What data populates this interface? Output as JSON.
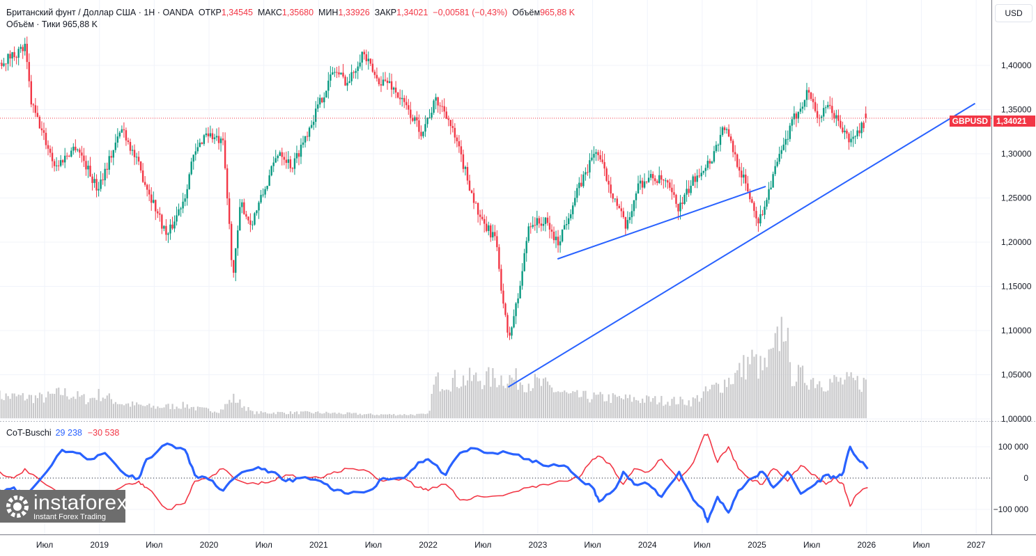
{
  "header": {
    "title": "Британский фунт / Доллар США · 1Н · OANDA",
    "open_label": "ОТКР",
    "open": "1,34545",
    "high_label": "МАКС",
    "high": "1,35680",
    "low_label": "МИН",
    "low": "1,33926",
    "close_label": "ЗАКР",
    "close": "1,34021",
    "change": "−0,00581 (−0,43%)",
    "volume_label": "Объём",
    "volume": "965,88 K",
    "sub": "Объём · Тики  965,88 K"
  },
  "currency": "USD",
  "price_tag": {
    "symbol": "GBPUSD",
    "value": "1,34021"
  },
  "cot_legend": {
    "name": "CoT-Buschi",
    "blue": "29 238",
    "red": "−30 538"
  },
  "logo": {
    "name": "instaforex",
    "tagline": "Instant Forex Trading"
  },
  "colors": {
    "up": "#089981",
    "down": "#f23645",
    "volume": "#c9c9cb",
    "cot_blue": "#2962ff",
    "cot_red": "#f23645",
    "trendline": "#2962ff"
  },
  "chart_data": [
    {
      "type": "candlestick",
      "symbol": "GBPUSD",
      "ylim": [
        1.0,
        1.43
      ],
      "grid": true,
      "yticks": [
        {
          "v": 1.4,
          "label": "1,40000"
        },
        {
          "v": 1.35,
          "label": "1,35000"
        },
        {
          "v": 1.3,
          "label": "1,30000"
        },
        {
          "v": 1.25,
          "label": "1,25000"
        },
        {
          "v": 1.2,
          "label": "1,20000"
        },
        {
          "v": 1.15,
          "label": "1,15000"
        },
        {
          "v": 1.1,
          "label": "1,10000"
        },
        {
          "v": 1.05,
          "label": "1,05000"
        },
        {
          "v": 1.0,
          "label": "1,00000"
        }
      ],
      "last_price": 1.34021,
      "last_open": 1.34545,
      "close_path": [
        [
          2018.09,
          1.403
        ],
        [
          2018.32,
          1.42
        ],
        [
          2018.38,
          1.356
        ],
        [
          2018.6,
          1.285
        ],
        [
          2018.79,
          1.31
        ],
        [
          2018.98,
          1.26
        ],
        [
          2019.21,
          1.33
        ],
        [
          2019.36,
          1.285
        ],
        [
          2019.62,
          1.206
        ],
        [
          2019.78,
          1.253
        ],
        [
          2019.84,
          1.29
        ],
        [
          2019.97,
          1.325
        ],
        [
          2020.13,
          1.31
        ],
        [
          2020.22,
          1.16
        ],
        [
          2020.29,
          1.245
        ],
        [
          2020.38,
          1.22
        ],
        [
          2020.51,
          1.26
        ],
        [
          2020.64,
          1.305
        ],
        [
          2020.76,
          1.285
        ],
        [
          2020.92,
          1.332
        ],
        [
          2021.14,
          1.395
        ],
        [
          2021.27,
          1.38
        ],
        [
          2021.4,
          1.415
        ],
        [
          2021.53,
          1.384
        ],
        [
          2021.65,
          1.38
        ],
        [
          2021.78,
          1.356
        ],
        [
          2021.94,
          1.325
        ],
        [
          2022.07,
          1.36
        ],
        [
          2022.16,
          1.348
        ],
        [
          2022.29,
          1.3
        ],
        [
          2022.48,
          1.222
        ],
        [
          2022.61,
          1.206
        ],
        [
          2022.73,
          1.088
        ],
        [
          2022.83,
          1.143
        ],
        [
          2022.92,
          1.222
        ],
        [
          2023.08,
          1.222
        ],
        [
          2023.18,
          1.198
        ],
        [
          2023.37,
          1.26
        ],
        [
          2023.53,
          1.305
        ],
        [
          2023.69,
          1.253
        ],
        [
          2023.81,
          1.214
        ],
        [
          2023.91,
          1.265
        ],
        [
          2024.04,
          1.273
        ],
        [
          2024.16,
          1.268
        ],
        [
          2024.29,
          1.238
        ],
        [
          2024.45,
          1.277
        ],
        [
          2024.58,
          1.293
        ],
        [
          2024.7,
          1.332
        ],
        [
          2024.86,
          1.277
        ],
        [
          2025.02,
          1.222
        ],
        [
          2025.15,
          1.277
        ],
        [
          2025.34,
          1.34
        ],
        [
          2025.47,
          1.372
        ],
        [
          2025.56,
          1.34
        ],
        [
          2025.66,
          1.353
        ],
        [
          2025.85,
          1.313
        ],
        [
          2026.01,
          1.34021
        ]
      ],
      "trendlines": [
        {
          "from": [
            2023.18,
            1.181
          ],
          "to": [
            2025.08,
            1.263
          ]
        },
        {
          "from": [
            2022.73,
            1.036
          ],
          "to": [
            2026.99,
            1.357
          ]
        }
      ],
      "volume_k": [
        [
          2018.09,
          600
        ],
        [
          2018.5,
          550
        ],
        [
          2018.66,
          700
        ],
        [
          2018.9,
          500
        ],
        [
          2019.0,
          650
        ],
        [
          2019.2,
          400
        ],
        [
          2019.5,
          300
        ],
        [
          2019.8,
          350
        ],
        [
          2019.9,
          250
        ],
        [
          2020.1,
          200
        ],
        [
          2020.22,
          550
        ],
        [
          2020.4,
          150
        ],
        [
          2021.0,
          150
        ],
        [
          2021.5,
          100
        ],
        [
          2022.0,
          100
        ],
        [
          2022.06,
          1000
        ],
        [
          2022.3,
          1050
        ],
        [
          2022.7,
          1100
        ],
        [
          2023.0,
          950
        ],
        [
          2023.3,
          600
        ],
        [
          2024.0,
          500
        ],
        [
          2024.4,
          450
        ],
        [
          2024.6,
          800
        ],
        [
          2024.8,
          1150
        ],
        [
          2024.95,
          1600
        ],
        [
          2025.05,
          1300
        ],
        [
          2025.15,
          1700
        ],
        [
          2025.26,
          2800
        ],
        [
          2025.3,
          1200
        ],
        [
          2025.6,
          1000
        ],
        [
          2026.01,
          966
        ]
      ]
    },
    {
      "type": "line",
      "name": "CoT-Buschi",
      "ylim": [
        -180000,
        180000
      ],
      "yticks": [
        {
          "v": 100000,
          "label": "100 000"
        },
        {
          "v": 0,
          "label": "0"
        },
        {
          "v": -100000,
          "label": "−100 000"
        }
      ],
      "x": [
        2018.09,
        2018.22,
        2018.32,
        2018.47,
        2018.66,
        2018.79,
        2018.92,
        2019.05,
        2019.24,
        2019.36,
        2019.43,
        2019.62,
        2019.78,
        2019.87,
        2020.0,
        2020.13,
        2020.25,
        2020.45,
        2020.57,
        2020.7,
        2020.83,
        2021.02,
        2021.14,
        2021.27,
        2021.46,
        2021.59,
        2021.78,
        2021.91,
        2022.0,
        2022.16,
        2022.29,
        2022.42,
        2022.54,
        2022.73,
        2022.92,
        2023.05,
        2023.24,
        2023.37,
        2023.5,
        2023.56,
        2023.69,
        2023.78,
        2023.88,
        2024.01,
        2024.13,
        2024.29,
        2024.42,
        2024.51,
        2024.55,
        2024.64,
        2024.74,
        2024.83,
        2024.96,
        2025.05,
        2025.15,
        2025.28,
        2025.4,
        2025.53,
        2025.63,
        2025.72,
        2025.79,
        2025.85,
        2025.92,
        2026.01
      ],
      "series": [
        {
          "name": "blue",
          "values": [
            -40000,
            -30000,
            -60000,
            0,
            90000,
            80000,
            60000,
            80000,
            10000,
            0,
            60000,
            110000,
            90000,
            10000,
            -5000,
            -40000,
            5000,
            35000,
            20000,
            -10000,
            0,
            -10000,
            -40000,
            -50000,
            -40000,
            0,
            0,
            50000,
            60000,
            10000,
            80000,
            95000,
            80000,
            80000,
            60000,
            40000,
            40000,
            0,
            -30000,
            -75000,
            -40000,
            20000,
            -20000,
            -20000,
            -60000,
            20000,
            -70000,
            -100000,
            -140000,
            -60000,
            -110000,
            -40000,
            0,
            20000,
            -30000,
            20000,
            -50000,
            -20000,
            10000,
            0,
            20000,
            100000,
            60000,
            29238
          ]
        },
        {
          "name": "red",
          "values": [
            20000,
            0,
            30000,
            -10000,
            -60000,
            -80000,
            -50000,
            -60000,
            -20000,
            -10000,
            -30000,
            -100000,
            -80000,
            -10000,
            0,
            30000,
            -5000,
            -20000,
            -10000,
            10000,
            0,
            0,
            20000,
            30000,
            20000,
            -10000,
            0,
            -30000,
            -40000,
            -20000,
            -70000,
            -60000,
            -60000,
            -50000,
            -30000,
            -20000,
            -10000,
            0,
            60000,
            70000,
            30000,
            -20000,
            30000,
            20000,
            60000,
            -10000,
            50000,
            130000,
            140000,
            50000,
            100000,
            30000,
            -10000,
            -20000,
            30000,
            -10000,
            40000,
            10000,
            -20000,
            0,
            -20000,
            -90000,
            -50000,
            -30538
          ]
        }
      ]
    },
    {
      "type": "time_axis",
      "labels": [
        {
          "t": 2018.5,
          "label": "Июл"
        },
        {
          "t": 2019,
          "label": "2019"
        },
        {
          "t": 2019.5,
          "label": "Июл"
        },
        {
          "t": 2020,
          "label": "2020"
        },
        {
          "t": 2020.5,
          "label": "Июл"
        },
        {
          "t": 2021,
          "label": "2021"
        },
        {
          "t": 2021.5,
          "label": "Июл"
        },
        {
          "t": 2022,
          "label": "2022"
        },
        {
          "t": 2022.5,
          "label": "Июл"
        },
        {
          "t": 2023,
          "label": "2023"
        },
        {
          "t": 2023.5,
          "label": "Июл"
        },
        {
          "t": 2024,
          "label": "2024"
        },
        {
          "t": 2024.5,
          "label": "Июл"
        },
        {
          "t": 2025,
          "label": "2025"
        },
        {
          "t": 2025.5,
          "label": "Июл"
        },
        {
          "t": 2026,
          "label": "2026"
        },
        {
          "t": 2026.5,
          "label": "Июл"
        },
        {
          "t": 2027,
          "label": "2027"
        }
      ]
    }
  ]
}
